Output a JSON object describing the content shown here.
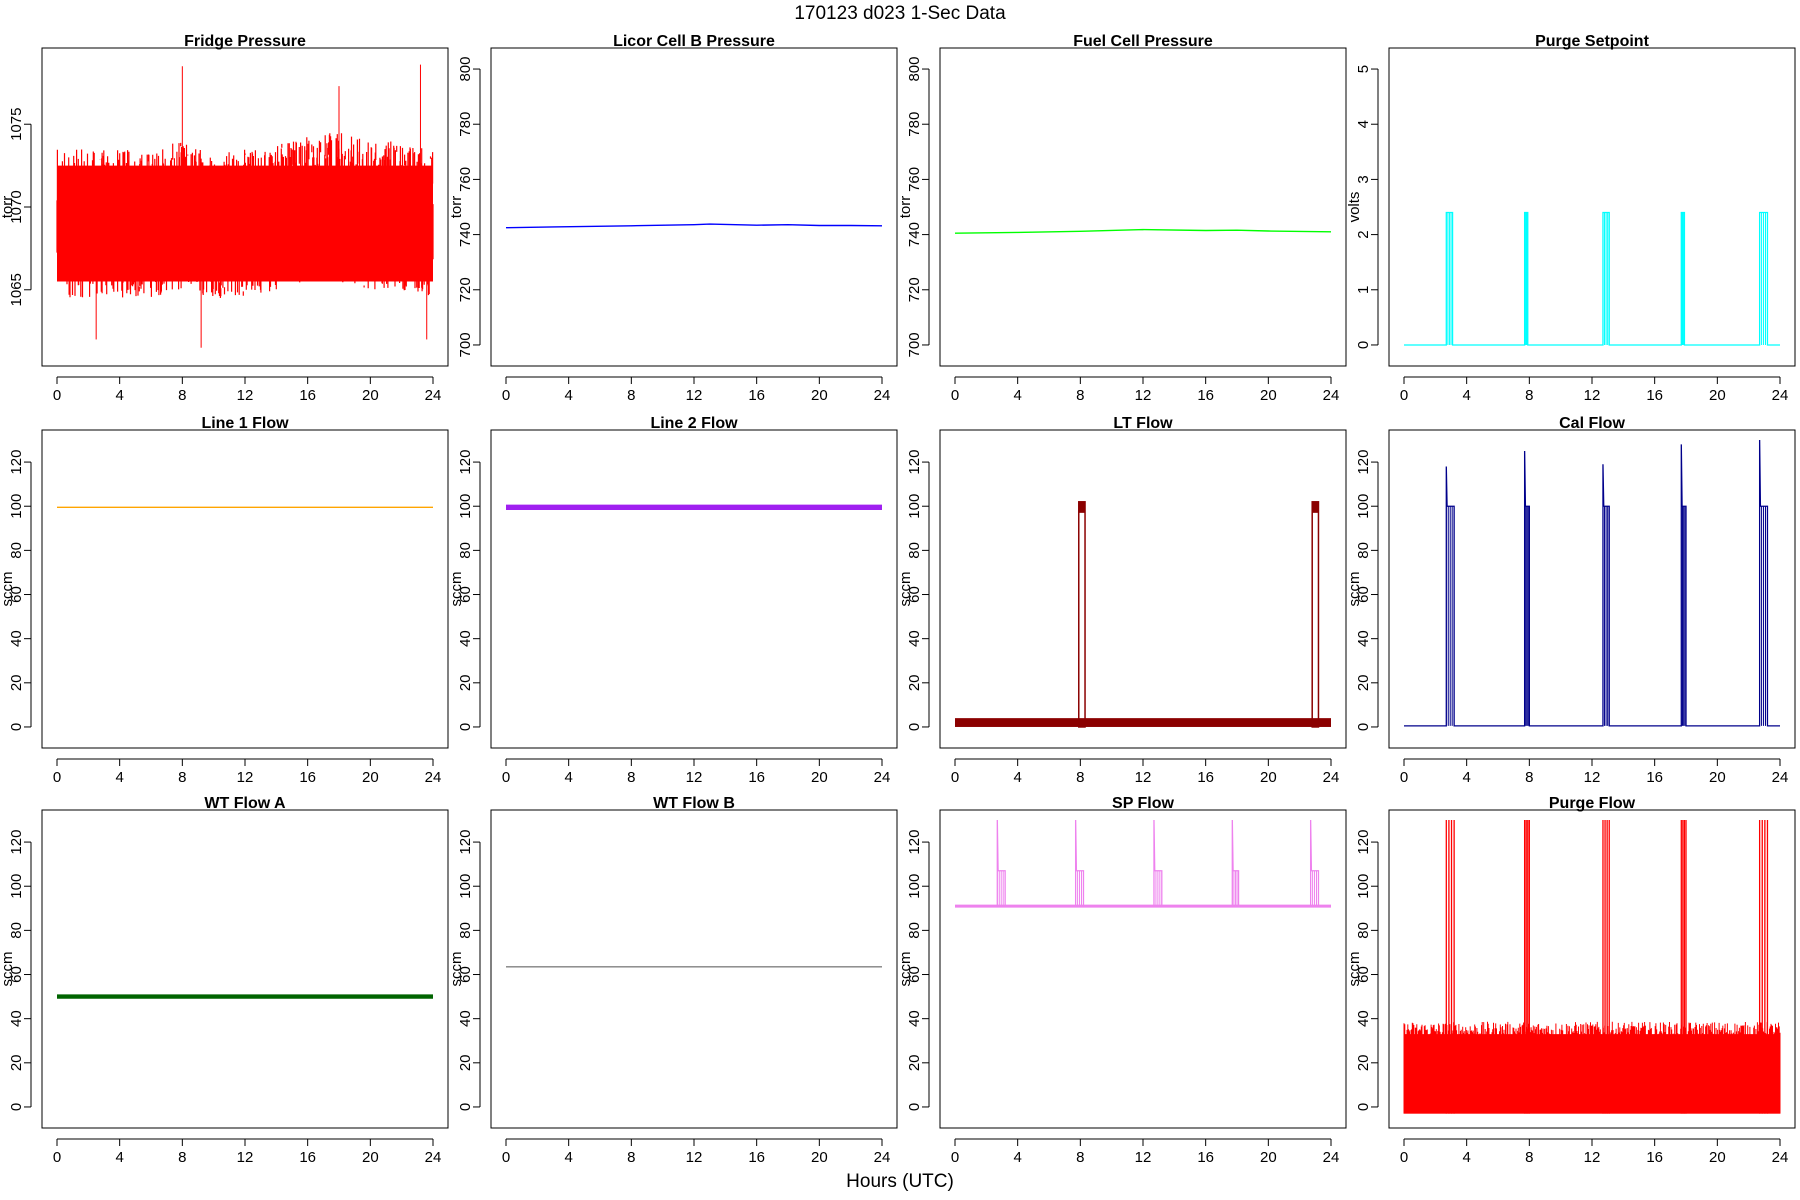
{
  "figure": {
    "title": "170123   d023   1-Sec Data",
    "xlabel": "Hours (UTC)"
  },
  "chart_data": [
    {
      "type": "line",
      "title": "Fridge Pressure",
      "ylabel": "torr",
      "color": "#ff0000",
      "xlim": [
        0,
        24
      ],
      "ylim": [
        1061,
        1079
      ],
      "xticks": [
        0,
        4,
        8,
        12,
        16,
        20,
        24
      ],
      "yticks": [
        1065,
        1070,
        1075
      ],
      "style": "noisy",
      "series": [
        {
          "x": [
            0,
            2,
            4,
            6,
            8,
            10,
            12,
            14,
            16,
            18,
            20,
            22,
            24
          ],
          "y": [
            1069,
            1069,
            1069,
            1069,
            1069.5,
            1069,
            1069,
            1069.5,
            1070,
            1070,
            1069.5,
            1069.5,
            1069
          ],
          "noise": 4.5
        }
      ]
    },
    {
      "type": "line",
      "title": "Licor Cell B Pressure",
      "ylabel": "torr",
      "color": "#0000ff",
      "xlim": [
        0,
        24
      ],
      "ylim": [
        696,
        804
      ],
      "xticks": [
        0,
        4,
        8,
        12,
        16,
        20,
        24
      ],
      "yticks": [
        700,
        720,
        740,
        760,
        780,
        800
      ],
      "style": "line",
      "series": [
        {
          "x": [
            0,
            3,
            8,
            12,
            13,
            16,
            18,
            20,
            22,
            24
          ],
          "y": [
            742.5,
            742.8,
            743.2,
            743.6,
            743.8,
            743.4,
            743.6,
            743.3,
            743.3,
            743.2
          ]
        }
      ]
    },
    {
      "type": "line",
      "title": "Fuel Cell Pressure",
      "ylabel": "torr",
      "color": "#00ff00",
      "xlim": [
        0,
        24
      ],
      "ylim": [
        696,
        804
      ],
      "xticks": [
        0,
        4,
        8,
        12,
        16,
        20,
        24
      ],
      "yticks": [
        700,
        720,
        740,
        760,
        780,
        800
      ],
      "style": "line",
      "series": [
        {
          "x": [
            0,
            4,
            8,
            12,
            16,
            18,
            20,
            24
          ],
          "y": [
            740.5,
            740.8,
            741.2,
            741.8,
            741.5,
            741.6,
            741.3,
            741
          ]
        }
      ]
    },
    {
      "type": "line",
      "title": "Purge Setpoint",
      "ylabel": "volts",
      "color": "#00ffff",
      "xlim": [
        0,
        24
      ],
      "ylim": [
        -0.2,
        5.2
      ],
      "xticks": [
        0,
        4,
        8,
        12,
        16,
        20,
        24
      ],
      "yticks": [
        0,
        1,
        2,
        3,
        4,
        5
      ],
      "style": "pulse",
      "baseline": 0,
      "pulses": [
        [
          2.7,
          3.1,
          2.4
        ],
        [
          7.7,
          7.9,
          2.4
        ],
        [
          12.7,
          13.1,
          2.4
        ],
        [
          17.7,
          17.9,
          2.4
        ],
        [
          22.7,
          23.2,
          2.4
        ]
      ]
    },
    {
      "type": "line",
      "title": "Line 1 Flow",
      "ylabel": "sccm",
      "color": "#ffa500",
      "xlim": [
        0,
        24
      ],
      "ylim": [
        -5,
        130
      ],
      "xticks": [
        0,
        4,
        8,
        12,
        16,
        20,
        24
      ],
      "yticks": [
        0,
        20,
        40,
        60,
        80,
        100,
        120
      ],
      "style": "line",
      "series": [
        {
          "x": [
            0,
            24
          ],
          "y": [
            99.5,
            99.5
          ]
        }
      ]
    },
    {
      "type": "line",
      "title": "Line 2 Flow",
      "ylabel": "sccm",
      "color": "#a020f0",
      "xlim": [
        0,
        24
      ],
      "ylim": [
        -5,
        130
      ],
      "xticks": [
        0,
        4,
        8,
        12,
        16,
        20,
        24
      ],
      "yticks": [
        0,
        20,
        40,
        60,
        80,
        100,
        120
      ],
      "style": "band",
      "series": [
        {
          "x": [
            0,
            24
          ],
          "y": [
            99.5,
            99.5
          ]
        }
      ],
      "band": 1.2
    },
    {
      "type": "line",
      "title": "LT Flow",
      "ylabel": "sccm",
      "color": "#8b0000",
      "xlim": [
        0,
        24
      ],
      "ylim": [
        -5,
        130
      ],
      "xticks": [
        0,
        4,
        8,
        12,
        16,
        20,
        24
      ],
      "yticks": [
        0,
        20,
        40,
        60,
        80,
        100,
        120
      ],
      "style": "ltband",
      "band": [
        0,
        4
      ],
      "pulses": [
        [
          7.9,
          8.3,
          100
        ],
        [
          22.8,
          23.2,
          100
        ]
      ]
    },
    {
      "type": "line",
      "title": "Cal Flow",
      "ylabel": "sccm",
      "color": "#00008b",
      "xlim": [
        0,
        24
      ],
      "ylim": [
        -5,
        130
      ],
      "xticks": [
        0,
        4,
        8,
        12,
        16,
        20,
        24
      ],
      "yticks": [
        0,
        20,
        40,
        60,
        80,
        100,
        120
      ],
      "style": "pulse",
      "baseline": 0.5,
      "pulses": [
        [
          2.7,
          3.2,
          100,
          118
        ],
        [
          7.7,
          8.0,
          100,
          125
        ],
        [
          12.7,
          13.1,
          100,
          119
        ],
        [
          17.7,
          18.0,
          100,
          128
        ],
        [
          22.7,
          23.2,
          100,
          130
        ]
      ]
    },
    {
      "type": "line",
      "title": "WT Flow A",
      "ylabel": "sccm",
      "color": "#006400",
      "xlim": [
        0,
        24
      ],
      "ylim": [
        -5,
        130
      ],
      "xticks": [
        0,
        4,
        8,
        12,
        16,
        20,
        24
      ],
      "yticks": [
        0,
        20,
        40,
        60,
        80,
        100,
        120
      ],
      "style": "band",
      "series": [
        {
          "x": [
            0,
            24
          ],
          "y": [
            50,
            50
          ]
        }
      ],
      "band": 1
    },
    {
      "type": "line",
      "title": "WT Flow B",
      "ylabel": "sccm",
      "color": "#808080",
      "xlim": [
        0,
        24
      ],
      "ylim": [
        -5,
        130
      ],
      "xticks": [
        0,
        4,
        8,
        12,
        16,
        20,
        24
      ],
      "yticks": [
        0,
        20,
        40,
        60,
        80,
        100,
        120
      ],
      "style": "line",
      "series": [
        {
          "x": [
            0,
            24
          ],
          "y": [
            63.5,
            63.5
          ]
        }
      ]
    },
    {
      "type": "line",
      "title": "SP Flow",
      "ylabel": "sccm",
      "color": "#ee82ee",
      "xlim": [
        0,
        24
      ],
      "ylim": [
        -5,
        130
      ],
      "xticks": [
        0,
        4,
        8,
        12,
        16,
        20,
        24
      ],
      "yticks": [
        0,
        20,
        40,
        60,
        80,
        100,
        120
      ],
      "style": "pulse",
      "baseline": 91,
      "pulses": [
        [
          2.7,
          3.2,
          107,
          130
        ],
        [
          7.7,
          8.2,
          107,
          130
        ],
        [
          12.7,
          13.2,
          107,
          130
        ],
        [
          17.7,
          18.1,
          107,
          130
        ],
        [
          22.7,
          23.2,
          107,
          130
        ]
      ]
    },
    {
      "type": "line",
      "title": "Purge Flow",
      "ylabel": "sccm",
      "color": "#ff0000",
      "xlim": [
        0,
        24
      ],
      "ylim": [
        -5,
        130
      ],
      "xticks": [
        0,
        4,
        8,
        12,
        16,
        20,
        24
      ],
      "yticks": [
        0,
        20,
        40,
        60,
        80,
        100,
        120
      ],
      "style": "purgefill",
      "baseline": -3,
      "top": 33,
      "pulses": [
        [
          2.7,
          3.2,
          130
        ],
        [
          7.7,
          8.0,
          130
        ],
        [
          12.7,
          13.1,
          130
        ],
        [
          17.7,
          18.0,
          130
        ],
        [
          22.7,
          23.2,
          130
        ]
      ]
    }
  ]
}
